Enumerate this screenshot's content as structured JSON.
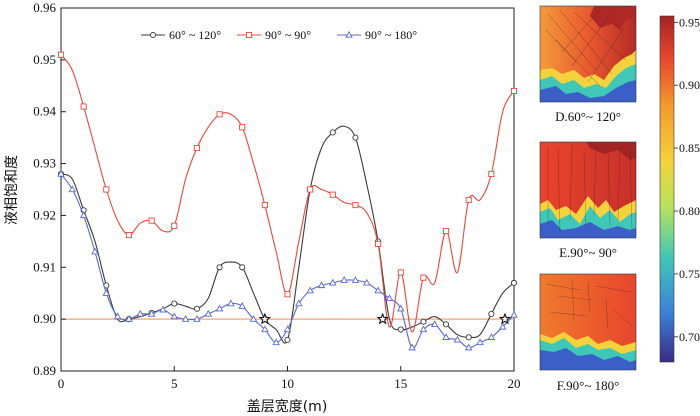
{
  "chart_data": {
    "type": "line",
    "xlabel": "盖层宽度(m)",
    "ylabel": "液相饱和度",
    "xlim": [
      0,
      20
    ],
    "ylim": [
      0.89,
      0.96
    ],
    "xticks": [
      "0",
      "5",
      "10",
      "15",
      "20"
    ],
    "yticks": [
      "0.89",
      "0.90",
      "0.91",
      "0.92",
      "0.93",
      "0.94",
      "0.95",
      "0.96"
    ],
    "reference_line": {
      "y": 0.9,
      "color": "#f4a47a"
    },
    "legend_position": "top",
    "series": [
      {
        "name": "60° ~ 120°",
        "color": "#3a3a3a",
        "marker": "circle",
        "x": [
          0,
          0.5,
          1,
          1.5,
          2,
          2.5,
          3,
          3.5,
          4,
          4.5,
          5,
          5.5,
          6,
          6.5,
          7,
          7.5,
          8,
          8.5,
          9,
          9.5,
          10,
          10.5,
          11,
          11.5,
          12,
          12.5,
          13,
          13.5,
          14,
          14.5,
          15,
          15.5,
          16,
          16.5,
          17,
          17.5,
          18,
          18.5,
          19,
          19.5,
          20
        ],
        "y": [
          0.928,
          0.927,
          0.921,
          0.915,
          0.9065,
          0.9,
          0.9,
          0.9005,
          0.9012,
          0.902,
          0.903,
          0.9025,
          0.902,
          0.904,
          0.91,
          0.911,
          0.91,
          0.905,
          0.9,
          0.898,
          0.896,
          0.91,
          0.925,
          0.933,
          0.936,
          0.9372,
          0.935,
          0.926,
          0.915,
          0.9,
          0.898,
          0.8985,
          0.8995,
          0.9005,
          0.899,
          0.897,
          0.8965,
          0.897,
          0.901,
          0.905,
          0.907
        ]
      },
      {
        "name": "90° ~ 90°",
        "color": "#e8483c",
        "marker": "square",
        "x": [
          0,
          0.5,
          1,
          1.5,
          2,
          2.5,
          3,
          3.5,
          4,
          4.5,
          5,
          5.5,
          6,
          6.5,
          7,
          7.5,
          8,
          8.5,
          9,
          9.5,
          10,
          10.5,
          11,
          11.5,
          12,
          12.5,
          13,
          13.5,
          14,
          14.5,
          15,
          15.5,
          16,
          16.5,
          17,
          17.5,
          18,
          18.5,
          19,
          19.5,
          20
        ],
        "y": [
          0.951,
          0.948,
          0.941,
          0.933,
          0.925,
          0.919,
          0.9162,
          0.9185,
          0.919,
          0.917,
          0.918,
          0.927,
          0.933,
          0.937,
          0.9395,
          0.9395,
          0.937,
          0.93,
          0.922,
          0.913,
          0.9048,
          0.915,
          0.925,
          0.925,
          0.924,
          0.9225,
          0.922,
          0.9205,
          0.9145,
          0.8985,
          0.909,
          0.8975,
          0.908,
          0.907,
          0.917,
          0.909,
          0.923,
          0.923,
          0.928,
          0.94,
          0.944
        ]
      },
      {
        "name": "90° ~ 180°",
        "color": "#5a6ad2",
        "marker": "triangle",
        "x": [
          0,
          0.5,
          1,
          1.5,
          2,
          2.5,
          3,
          3.5,
          4,
          4.5,
          5,
          5.5,
          6,
          6.5,
          7,
          7.5,
          8,
          8.5,
          9,
          9.5,
          10,
          10.5,
          11,
          11.5,
          12,
          12.5,
          13,
          13.5,
          14,
          14.5,
          15,
          15.5,
          16,
          16.5,
          17,
          17.5,
          18,
          18.5,
          19,
          19.5,
          20
        ],
        "y": [
          0.928,
          0.925,
          0.92,
          0.913,
          0.905,
          0.9005,
          0.9,
          0.901,
          0.901,
          0.9018,
          0.9005,
          0.9,
          0.9,
          0.901,
          0.902,
          0.903,
          0.9025,
          0.9,
          0.898,
          0.8955,
          0.898,
          0.903,
          0.9055,
          0.9065,
          0.907,
          0.9075,
          0.9075,
          0.907,
          0.9055,
          0.904,
          0.902,
          0.8945,
          0.898,
          0.899,
          0.8965,
          0.896,
          0.8945,
          0.8955,
          0.8965,
          0.8985,
          0.9008
        ]
      }
    ],
    "star_markers": [
      {
        "x": 9.0,
        "y": 0.9
      },
      {
        "x": 14.2,
        "y": 0.9
      },
      {
        "x": 19.6,
        "y": 0.9
      }
    ]
  },
  "panels": [
    {
      "label": "D.60°~ 120°"
    },
    {
      "label": "E.90°~ 90°"
    },
    {
      "label": "F.90°~ 180°"
    }
  ],
  "colorbar": {
    "min": 0.68,
    "max": 0.955,
    "tick_values": [
      0.95,
      0.9,
      0.85,
      0.8,
      0.75,
      0.7
    ],
    "tick_labels": [
      "0.95",
      "0.90",
      "0.85",
      "0.80",
      "0.75",
      "0.70"
    ],
    "colors": [
      "#3b2a85",
      "#3b7fd8",
      "#3fc7b8",
      "#b8e35a",
      "#f4d23c",
      "#f49a2a",
      "#e8452c",
      "#a32424"
    ]
  }
}
